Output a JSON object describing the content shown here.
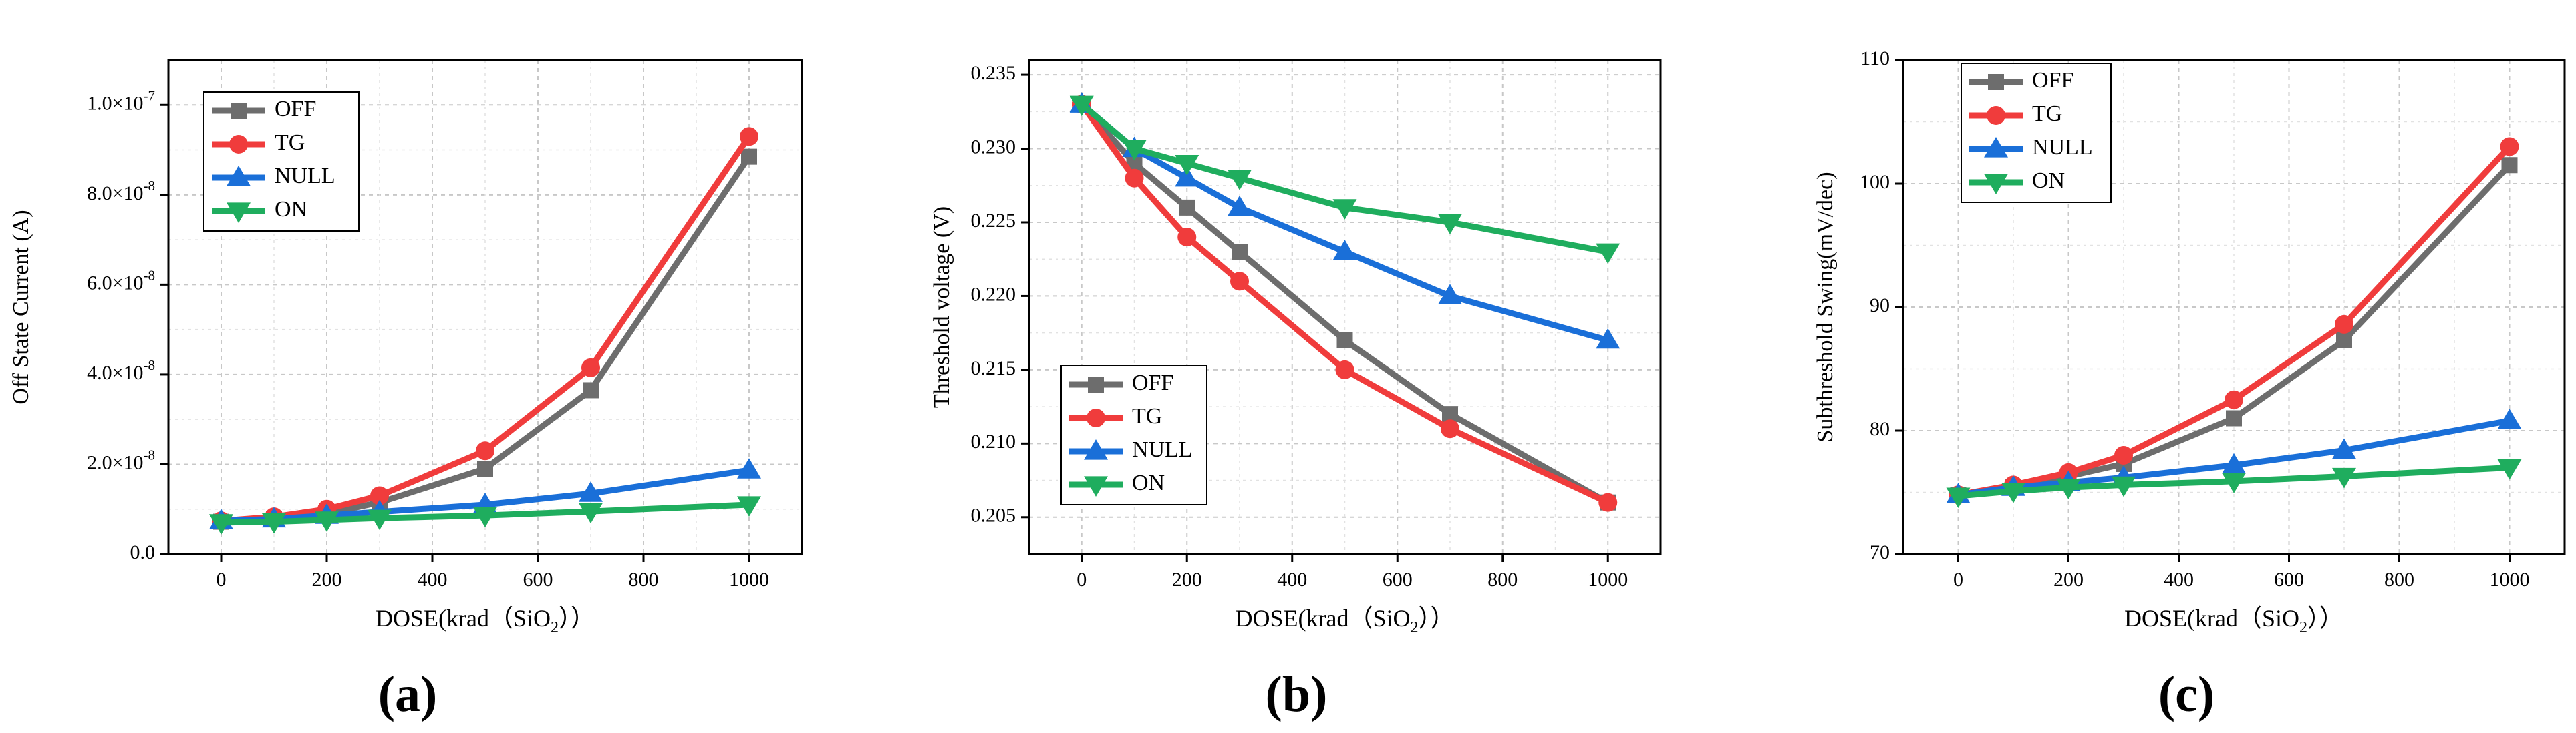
{
  "figure": {
    "panel_labels": [
      "(a)",
      "(b)",
      "(c)"
    ]
  },
  "chart_data": [
    {
      "type": "line",
      "panel": "(a)",
      "xlabel": "DOSE(krad（SiO₂））",
      "ylabel": "Off State Current (A)",
      "xlim": [
        -100,
        1100
      ],
      "ylim": [
        0,
        1.1e-07
      ],
      "xticks": [
        0,
        200,
        400,
        600,
        800,
        1000
      ],
      "yticks": [
        0,
        2e-08,
        4e-08,
        6e-08,
        8e-08,
        1e-07
      ],
      "yticklabels": [
        "0.0",
        "2.0×10⁻⁸",
        "4.0×10⁻⁸",
        "6.0×10⁻⁸",
        "8.0×10⁻⁸",
        "1.0×10⁻⁷"
      ],
      "grid": true,
      "legend_position": "top-left",
      "x": [
        0,
        100,
        200,
        300,
        500,
        700,
        1000
      ],
      "series": [
        {
          "name": "OFF",
          "color": "#6d6d6d",
          "marker": "square",
          "values": [
            7.2e-09,
            7.8e-09,
            9e-09,
            1.15e-08,
            1.9e-08,
            3.65e-08,
            8.85e-08
          ]
        },
        {
          "name": "TG",
          "color": "#f03c3c",
          "marker": "circle",
          "values": [
            7.4e-09,
            8.3e-09,
            1e-08,
            1.3e-08,
            2.3e-08,
            4.15e-08,
            9.3e-08
          ]
        },
        {
          "name": "NULL",
          "color": "#1a6fd8",
          "marker": "triangle",
          "values": [
            7.4e-09,
            7.8e-09,
            8.6e-09,
            9.4e-09,
            1.1e-08,
            1.35e-08,
            1.87e-08
          ]
        },
        {
          "name": "ON",
          "color": "#1fad5e",
          "marker": "invtriangle",
          "values": [
            7e-09,
            7.2e-09,
            7.6e-09,
            8e-09,
            8.6e-09,
            9.5e-09,
            1.1e-08
          ]
        }
      ]
    },
    {
      "type": "line",
      "panel": "(b)",
      "xlabel": "DOSE(krad（SiO₂））",
      "ylabel": "Threshold voltage (V)",
      "xlim": [
        -100,
        1100
      ],
      "ylim": [
        0.2025,
        0.236
      ],
      "xticks": [
        0,
        200,
        400,
        600,
        800,
        1000
      ],
      "yticks": [
        0.205,
        0.21,
        0.215,
        0.22,
        0.225,
        0.23,
        0.235
      ],
      "yticklabels": [
        "0.205",
        "0.210",
        "0.215",
        "0.220",
        "0.225",
        "0.230",
        "0.235"
      ],
      "grid": true,
      "legend_position": "bottom-left",
      "x": [
        0,
        100,
        200,
        300,
        500,
        700,
        1000
      ],
      "series": [
        {
          "name": "OFF",
          "color": "#6d6d6d",
          "marker": "square",
          "values": [
            0.233,
            0.229,
            0.226,
            0.223,
            0.217,
            0.212,
            0.206
          ]
        },
        {
          "name": "TG",
          "color": "#f03c3c",
          "marker": "circle",
          "values": [
            0.233,
            0.228,
            0.224,
            0.221,
            0.215,
            0.211,
            0.206
          ]
        },
        {
          "name": "NULL",
          "color": "#1a6fd8",
          "marker": "triangle",
          "values": [
            0.233,
            0.23,
            0.228,
            0.226,
            0.223,
            0.22,
            0.217
          ]
        },
        {
          "name": "ON",
          "color": "#1fad5e",
          "marker": "invtriangle",
          "values": [
            0.233,
            0.23,
            0.229,
            0.228,
            0.226,
            0.225,
            0.223
          ]
        }
      ]
    },
    {
      "type": "line",
      "panel": "(c)",
      "xlabel": "DOSE(krad（SiO₂））",
      "ylabel": "Subthreshold Swing(mV/dec)",
      "xlim": [
        -100,
        1100
      ],
      "ylim": [
        70,
        110
      ],
      "xticks": [
        0,
        200,
        400,
        600,
        800,
        1000
      ],
      "yticks": [
        70,
        80,
        90,
        100,
        110
      ],
      "yticklabels": [
        "70",
        "80",
        "90",
        "100",
        "110"
      ],
      "grid": true,
      "legend_position": "top-left",
      "x": [
        0,
        100,
        200,
        300,
        500,
        700,
        1000
      ],
      "series": [
        {
          "name": "OFF",
          "color": "#6d6d6d",
          "marker": "square",
          "values": [
            74.8,
            75.4,
            76.3,
            77.3,
            81.0,
            87.3,
            101.5
          ]
        },
        {
          "name": "TG",
          "color": "#f03c3c",
          "marker": "circle",
          "values": [
            74.8,
            75.6,
            76.6,
            78.0,
            82.5,
            88.6,
            103.0
          ]
        },
        {
          "name": "NULL",
          "color": "#1a6fd8",
          "marker": "triangle",
          "values": [
            74.8,
            75.4,
            75.8,
            76.2,
            77.2,
            78.4,
            80.8
          ]
        },
        {
          "name": "ON",
          "color": "#1fad5e",
          "marker": "invtriangle",
          "values": [
            74.7,
            75.1,
            75.4,
            75.6,
            75.9,
            76.3,
            77.0
          ]
        }
      ]
    }
  ]
}
